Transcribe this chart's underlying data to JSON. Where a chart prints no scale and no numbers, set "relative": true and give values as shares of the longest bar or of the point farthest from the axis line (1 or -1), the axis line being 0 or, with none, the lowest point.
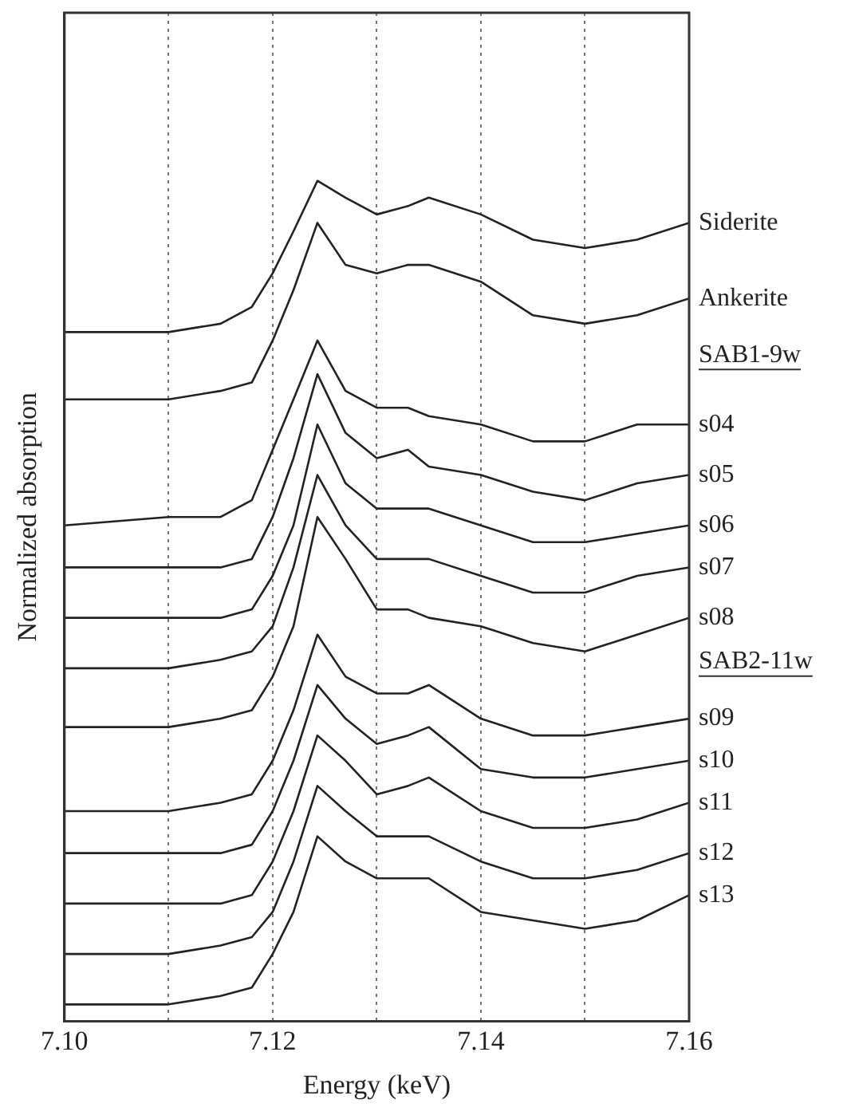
{
  "chart_data": {
    "type": "line",
    "relative": true,
    "xlabel": "Energy (keV)",
    "ylabel": "Normalized absorption",
    "x": [
      7.1,
      7.11,
      7.115,
      7.118,
      7.12,
      7.122,
      7.1243,
      7.127,
      7.13,
      7.133,
      7.135,
      7.14,
      7.145,
      7.15,
      7.155,
      7.16
    ],
    "xlim": [
      7.1,
      7.16
    ],
    "xticks": [
      {
        "value": 7.1,
        "label": "7.10"
      },
      {
        "value": 7.11,
        "label": null
      },
      {
        "value": 7.12,
        "label": "7.12"
      },
      {
        "value": 7.13,
        "label": null
      },
      {
        "value": 7.14,
        "label": "7.14"
      },
      {
        "value": 7.15,
        "label": null
      },
      {
        "value": 7.16,
        "label": "7.16"
      }
    ],
    "grid": "x",
    "legend": false,
    "marker": "none",
    "line_style": "solid",
    "series": [
      {
        "name": "Siderite",
        "color": "#222222",
        "values": [
          0.82,
          0.82,
          0.83,
          0.85,
          0.89,
          0.94,
          1.0,
          0.98,
          0.96,
          0.97,
          0.98,
          0.96,
          0.93,
          0.92,
          0.93,
          0.95
        ]
      },
      {
        "name": "Ankerite",
        "color": "#222222",
        "values": [
          0.74,
          0.74,
          0.75,
          0.76,
          0.81,
          0.87,
          0.95,
          0.9,
          0.89,
          0.9,
          0.9,
          0.88,
          0.84,
          0.83,
          0.84,
          0.86
        ]
      },
      {
        "name": "s04",
        "color": "#222222",
        "values": [
          0.59,
          0.6,
          0.6,
          0.62,
          0.68,
          0.74,
          0.81,
          0.75,
          0.73,
          0.73,
          0.72,
          0.71,
          0.69,
          0.69,
          0.71,
          0.71
        ]
      },
      {
        "name": "s05",
        "color": "#222222",
        "values": [
          0.54,
          0.54,
          0.54,
          0.55,
          0.6,
          0.67,
          0.77,
          0.7,
          0.67,
          0.68,
          0.66,
          0.65,
          0.63,
          0.62,
          0.64,
          0.65
        ]
      },
      {
        "name": "s06",
        "color": "#222222",
        "values": [
          0.48,
          0.48,
          0.48,
          0.49,
          0.53,
          0.59,
          0.71,
          0.64,
          0.61,
          0.61,
          0.61,
          0.59,
          0.57,
          0.57,
          0.58,
          0.59
        ]
      },
      {
        "name": "s07",
        "color": "#222222",
        "values": [
          0.42,
          0.42,
          0.43,
          0.44,
          0.47,
          0.54,
          0.65,
          0.59,
          0.55,
          0.55,
          0.55,
          0.53,
          0.51,
          0.51,
          0.53,
          0.54
        ]
      },
      {
        "name": "s08",
        "color": "#222222",
        "values": [
          0.35,
          0.35,
          0.36,
          0.37,
          0.41,
          0.47,
          0.6,
          0.55,
          0.49,
          0.49,
          0.48,
          0.47,
          0.45,
          0.44,
          0.46,
          0.48
        ]
      },
      {
        "name": "s09",
        "color": "#222222",
        "values": [
          0.25,
          0.25,
          0.26,
          0.27,
          0.31,
          0.37,
          0.46,
          0.41,
          0.39,
          0.39,
          0.4,
          0.36,
          0.34,
          0.34,
          0.35,
          0.36
        ]
      },
      {
        "name": "s10",
        "color": "#222222",
        "values": [
          0.2,
          0.2,
          0.2,
          0.21,
          0.25,
          0.31,
          0.4,
          0.36,
          0.33,
          0.34,
          0.35,
          0.3,
          0.29,
          0.29,
          0.3,
          0.31
        ]
      },
      {
        "name": "s11",
        "color": "#222222",
        "values": [
          0.14,
          0.14,
          0.14,
          0.15,
          0.19,
          0.25,
          0.34,
          0.31,
          0.27,
          0.28,
          0.29,
          0.25,
          0.23,
          0.23,
          0.24,
          0.26
        ]
      },
      {
        "name": "s12",
        "color": "#222222",
        "values": [
          0.08,
          0.08,
          0.09,
          0.1,
          0.13,
          0.19,
          0.28,
          0.25,
          0.22,
          0.22,
          0.22,
          0.19,
          0.17,
          0.17,
          0.18,
          0.2
        ]
      },
      {
        "name": "s13",
        "color": "#222222",
        "values": [
          0.02,
          0.02,
          0.03,
          0.04,
          0.08,
          0.13,
          0.22,
          0.19,
          0.17,
          0.17,
          0.17,
          0.13,
          0.12,
          0.11,
          0.12,
          0.15
        ]
      }
    ],
    "annotations": [
      "SAB1-9w",
      "SAB2-11w"
    ]
  }
}
